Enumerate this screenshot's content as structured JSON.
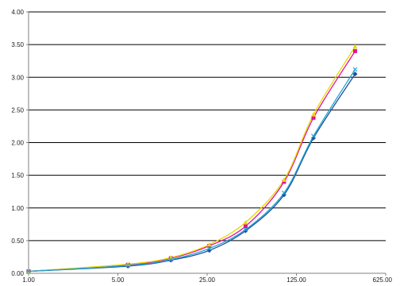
{
  "chart_data": {
    "type": "line",
    "x_scale": "log",
    "x_ticks": [
      1,
      5,
      25,
      125,
      625
    ],
    "x_tick_labels": [
      "1.00",
      "5.00",
      "25.00",
      "125.00",
      "625.00"
    ],
    "xlim": [
      1,
      625
    ],
    "y_ticks": [
      0,
      0.5,
      1,
      1.5,
      2,
      2.5,
      3,
      3.5,
      4
    ],
    "y_tick_labels": [
      "0.00",
      "0.50",
      "1.00",
      "1.50",
      "2.00",
      "2.50",
      "3.00",
      "3.50",
      "4.00"
    ],
    "ylim": [
      0,
      4
    ],
    "grid": "horizontal",
    "legend": "none",
    "title": "",
    "xlabel": "",
    "ylabel": "",
    "x": [
      1,
      6,
      13,
      26,
      50,
      100,
      170,
      360
    ],
    "series": [
      {
        "color": "#1f4e9c",
        "marker": "diamond",
        "values": [
          0.03,
          0.11,
          0.2,
          0.35,
          0.65,
          1.2,
          2.07,
          3.05
        ]
      },
      {
        "color": "#e0109c",
        "marker": "square",
        "values": [
          0.03,
          0.13,
          0.23,
          0.42,
          0.72,
          1.4,
          2.38,
          3.4
        ]
      },
      {
        "color": "#e8d800",
        "marker": "triangle",
        "values": [
          0.03,
          0.14,
          0.24,
          0.44,
          0.78,
          1.43,
          2.43,
          3.47
        ]
      },
      {
        "color": "#1fa4d4",
        "marker": "x",
        "values": [
          0.03,
          0.12,
          0.21,
          0.38,
          0.67,
          1.23,
          2.1,
          3.12
        ]
      }
    ]
  }
}
